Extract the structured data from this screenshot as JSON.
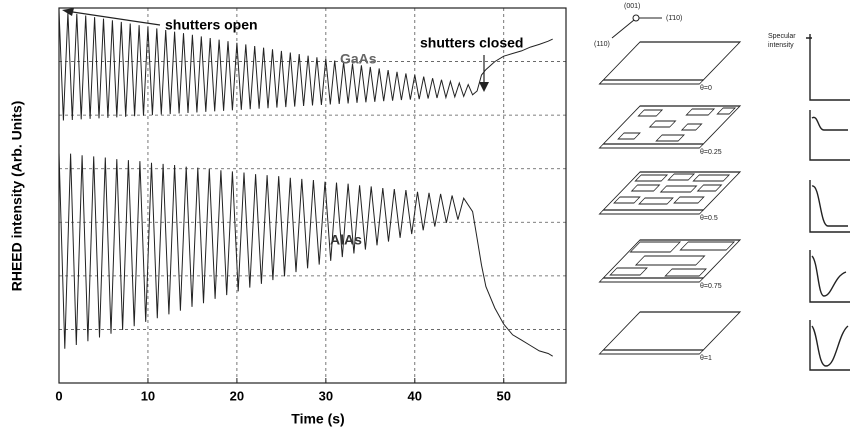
{
  "chart_data": {
    "type": "line",
    "y_label": "RHEED intensity (Arb. Units)",
    "x_label": "Time (s)",
    "annotations": [
      "shutters open",
      "shutters closed"
    ],
    "xlim": [
      0,
      57
    ],
    "xticks": [
      0,
      10,
      20,
      30,
      40,
      50
    ],
    "ylim": [
      0,
      7
    ],
    "yticks": [
      1,
      2,
      3,
      4,
      5,
      6
    ],
    "grid": true,
    "series": [
      {
        "name": "GaAs",
        "color": "#222222",
        "x": [
          0,
          0.5,
          1,
          1.5,
          2,
          2.5,
          3,
          3.5,
          4,
          4.5,
          5,
          5.5,
          6,
          6.5,
          7,
          7.5,
          8,
          8.5,
          9,
          9.5,
          10,
          10.5,
          11,
          11.5,
          12,
          12.5,
          13,
          13.5,
          14,
          14.5,
          15,
          15.5,
          16,
          16.5,
          17,
          17.5,
          18,
          18.5,
          19,
          19.5,
          20,
          20.5,
          21,
          21.5,
          22,
          22.5,
          23,
          23.5,
          24,
          24.5,
          25,
          25.5,
          26,
          26.5,
          27,
          27.5,
          28,
          28.5,
          29,
          29.5,
          30,
          30.5,
          31,
          31.5,
          32,
          32.5,
          33,
          33.5,
          34,
          34.5,
          35,
          35.5,
          36,
          36.5,
          37,
          37.5,
          38,
          38.5,
          39,
          39.5,
          40,
          40.5,
          41,
          41.5,
          42,
          42.5,
          43,
          43.5,
          44,
          44.5,
          45,
          45.5,
          46,
          46.5,
          47,
          47.5,
          48,
          49,
          50,
          51,
          52,
          53,
          54,
          55,
          55.5
        ],
        "values": [
          6.95,
          4.9,
          6.92,
          4.91,
          6.89,
          4.92,
          6.86,
          4.93,
          6.83,
          4.94,
          6.8,
          4.95,
          6.77,
          4.96,
          6.74,
          4.97,
          6.71,
          4.98,
          6.68,
          4.99,
          6.65,
          5.0,
          6.62,
          5.01,
          6.59,
          5.02,
          6.56,
          5.03,
          6.53,
          5.04,
          6.5,
          5.05,
          6.47,
          5.06,
          6.44,
          5.07,
          6.41,
          5.08,
          6.38,
          5.09,
          6.35,
          5.1,
          6.32,
          5.11,
          6.29,
          5.12,
          6.26,
          5.13,
          6.23,
          5.14,
          6.2,
          5.15,
          6.17,
          5.16,
          6.14,
          5.17,
          6.11,
          5.18,
          6.08,
          5.19,
          6.05,
          5.2,
          6.02,
          5.21,
          5.99,
          5.22,
          5.96,
          5.23,
          5.93,
          5.24,
          5.9,
          5.25,
          5.87,
          5.26,
          5.84,
          5.27,
          5.81,
          5.28,
          5.78,
          5.29,
          5.75,
          5.3,
          5.72,
          5.31,
          5.69,
          5.32,
          5.66,
          5.33,
          5.63,
          5.34,
          5.6,
          5.35,
          5.57,
          5.38,
          5.45,
          5.75,
          5.85,
          6.0,
          6.1,
          6.15,
          6.2,
          6.27,
          6.32,
          6.38,
          6.42
        ]
      },
      {
        "name": "AlAs",
        "color": "#222222",
        "x": [
          0,
          0.65,
          1.3,
          1.95,
          2.6,
          3.25,
          3.9,
          4.55,
          5.2,
          5.85,
          6.5,
          7.15,
          7.8,
          8.45,
          9.1,
          9.75,
          10.4,
          11.05,
          11.7,
          12.35,
          13.0,
          13.65,
          14.3,
          14.95,
          15.6,
          16.25,
          16.9,
          17.55,
          18.2,
          18.85,
          19.5,
          20.15,
          20.8,
          21.45,
          22.1,
          22.75,
          23.4,
          24.05,
          24.7,
          25.35,
          26.0,
          26.65,
          27.3,
          27.95,
          28.6,
          29.25,
          29.9,
          30.55,
          31.2,
          31.85,
          32.5,
          33.15,
          33.8,
          34.45,
          35.1,
          35.75,
          36.4,
          37.05,
          37.7,
          38.35,
          39.0,
          39.65,
          40.3,
          40.95,
          41.6,
          42.25,
          42.9,
          43.55,
          44.2,
          44.85,
          45.5,
          46.5,
          47,
          47.5,
          48,
          49,
          50,
          51,
          52,
          53,
          54,
          55,
          55.5
        ],
        "values": [
          4.3,
          0.64,
          4.28,
          0.71,
          4.25,
          0.78,
          4.23,
          0.85,
          4.21,
          0.92,
          4.18,
          0.99,
          4.16,
          1.06,
          4.14,
          1.14,
          4.11,
          1.21,
          4.09,
          1.28,
          4.07,
          1.35,
          4.04,
          1.42,
          4.02,
          1.49,
          4.0,
          1.57,
          3.97,
          1.64,
          3.95,
          1.71,
          3.93,
          1.78,
          3.9,
          1.85,
          3.88,
          1.92,
          3.86,
          1.99,
          3.83,
          2.07,
          3.81,
          2.14,
          3.79,
          2.21,
          3.76,
          2.28,
          3.74,
          2.35,
          3.72,
          2.42,
          3.69,
          2.49,
          3.67,
          2.57,
          3.64,
          2.64,
          3.62,
          2.71,
          3.6,
          2.78,
          3.57,
          2.85,
          3.55,
          2.92,
          3.53,
          2.99,
          3.5,
          3.05,
          3.45,
          3.2,
          2.7,
          2.2,
          1.8,
          1.4,
          1.1,
          0.9,
          0.8,
          0.7,
          0.6,
          0.55,
          0.5
        ]
      }
    ]
  },
  "diagram": {
    "axes_labels": [
      "(001)",
      "(1̄10)",
      "(110)"
    ],
    "specular_label": [
      "Specular",
      "intensity"
    ],
    "layers": [
      {
        "label": "θ=0"
      },
      {
        "label": "θ=0.25"
      },
      {
        "label": "θ=0.5"
      },
      {
        "label": "θ=0.75"
      },
      {
        "label": "θ=1"
      }
    ]
  }
}
